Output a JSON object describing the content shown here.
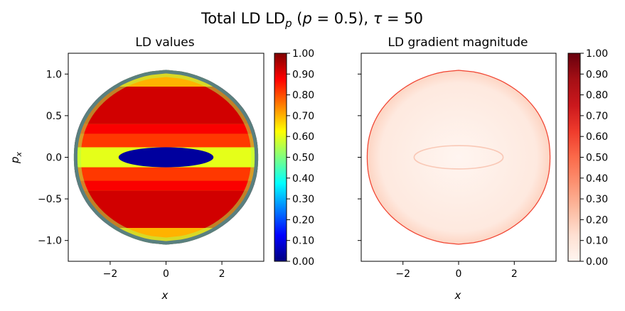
{
  "figure": {
    "title_main": "Total LD LD",
    "title_sub": "p",
    "title_paren": " (",
    "title_p": "p",
    "title_eq": " = 0.5), ",
    "title_tau": "τ",
    "title_tau_eq": " = 50"
  },
  "chart_data": [
    {
      "type": "heatmap",
      "title": "LD values",
      "xlabel": "x",
      "ylabel_base": "p",
      "ylabel_sub": "x",
      "xlim": [
        -3.5,
        3.5
      ],
      "ylim": [
        -1.25,
        1.25
      ],
      "xticks": [
        -2,
        0,
        2
      ],
      "xtick_labels": [
        "−2",
        "0",
        "2"
      ],
      "yticks": [
        -1.0,
        -0.5,
        0.0,
        0.5,
        1.0
      ],
      "ytick_labels": [
        "−1.0",
        "−0.5",
        "0.0",
        "0.5",
        "1.0"
      ],
      "colormap": "jet",
      "colormap_stops": [
        "#00007f",
        "#0000ff",
        "#007fff",
        "#00ffff",
        "#7fff7f",
        "#ffff00",
        "#ff7f00",
        "#ff0000",
        "#7f0000"
      ],
      "colorbar_range": [
        0.0,
        1.0
      ],
      "colorbar_ticks": [
        0.0,
        0.1,
        0.2,
        0.3,
        0.4,
        0.5,
        0.6,
        0.7,
        0.8,
        0.9,
        1.0
      ],
      "colorbar_labels": [
        "0.00",
        "0.10",
        "0.20",
        "0.30",
        "0.40",
        "0.50",
        "0.60",
        "0.70",
        "0.80",
        "0.90",
        "1.00"
      ],
      "region": {
        "x_extent": [
          -3.3,
          3.3
        ],
        "p_extent": [
          -1.05,
          1.05
        ],
        "bands": [
          {
            "p_range": [
              0.0,
              0.12
            ],
            "value": 0.6
          },
          {
            "p_range": [
              0.12,
              0.28
            ],
            "value": 0.82
          },
          {
            "p_range": [
              0.28,
              0.4
            ],
            "value": 0.88
          },
          {
            "p_range": [
              0.4,
              0.85
            ],
            "value": 0.92
          },
          {
            "p_range": [
              0.85,
              1.05
            ],
            "value": 0.7
          }
        ]
      }
    },
    {
      "type": "heatmap",
      "title": "LD gradient magnitude",
      "xlabel": "x",
      "xlim": [
        -3.5,
        3.5
      ],
      "ylim": [
        -1.25,
        1.25
      ],
      "xticks": [
        -2,
        0,
        2
      ],
      "xtick_labels": [
        "−2",
        "0",
        "2"
      ],
      "yticks": [
        -1.0,
        -0.5,
        0.0,
        0.5,
        1.0
      ],
      "colormap": "Reds",
      "colormap_stops": [
        "#fff5f0",
        "#fee0d2",
        "#fcbba1",
        "#fc9272",
        "#fb6a4a",
        "#ef3b2c",
        "#cb181d",
        "#a50f15",
        "#67000d"
      ],
      "colorbar_range": [
        0.0,
        1.0
      ],
      "colorbar_ticks": [
        0.0,
        0.1,
        0.2,
        0.3,
        0.4,
        0.5,
        0.6,
        0.7,
        0.8,
        0.9,
        1.0
      ],
      "colorbar_labels": [
        "0.00",
        "0.10",
        "0.20",
        "0.30",
        "0.40",
        "0.50",
        "0.60",
        "0.70",
        "0.80",
        "0.90",
        "1.00"
      ],
      "region": {
        "x_extent": [
          -3.3,
          3.3
        ],
        "p_extent": [
          -1.05,
          1.05
        ],
        "interior_value": 0.04,
        "boundary_value": 0.6
      }
    }
  ]
}
